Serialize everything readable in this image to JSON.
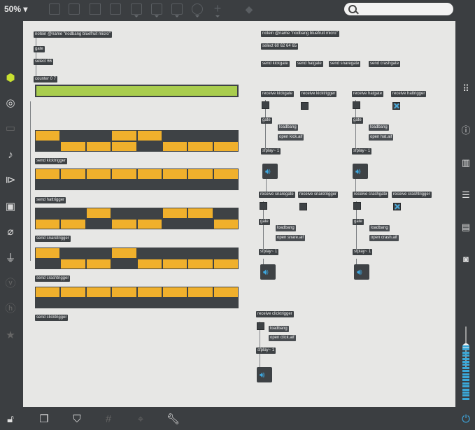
{
  "toolbar": {
    "zoom": "50%",
    "icons": [
      "patcher-icon",
      "presentation-icon",
      "comment-icon",
      "toggle-icon",
      "target-icon",
      "play-icon",
      "minus-icon",
      "dial-icon",
      "plus-icon",
      "paint-bucket-icon"
    ]
  },
  "search": {
    "placeholder": ""
  },
  "left_sidebar": [
    "cube-icon",
    "target-circle-icon",
    "package-icon",
    "music-note-icon",
    "sequence-icon",
    "image-icon",
    "paperclip-icon",
    "plug-icon",
    "v-icon",
    "h-icon",
    "star-icon"
  ],
  "right_sidebar": [
    "grid-dots-icon",
    "info-icon",
    "book-icon",
    "list-icon",
    "reference-icon",
    "camera-icon"
  ],
  "bottom_bar": [
    "lock-icon",
    "windows-icon",
    "presentation-icon",
    "grid-icon",
    "pin-icon",
    "wrench-icon"
  ],
  "colors": {
    "accent": "#a9cd4e",
    "step_on": "#f0b02c",
    "step_off": "#3e4245",
    "blue": "#3ea8e0",
    "canvas": "#e7e7e5"
  },
  "patch": {
    "notein_left": "notein @name \"nodbang bluefruit micro\"",
    "gate_left": "gate",
    "select_left": "select 66",
    "counter": "counter 0 7",
    "send_kicktrigger": "send kicktrigger",
    "send_hattrigger": "send hattrigger",
    "send_snaretrigger": "send snaretrigger",
    "send_crashtrigger": "send crashtrigger",
    "send_clicktrigger": "send clicktrigger",
    "notein_right": "notein @name \"nodbang bluefruit micro\"",
    "select_right": "select 60 62 64 65",
    "send_kickgate": "send kickgate",
    "send_hatgate": "send hatgate",
    "send_snaregate": "send snaregate",
    "send_crashgate": "send crashgate",
    "kick": {
      "recv_gate": "receive kickgate",
      "recv_trig": "receive kicktrigger",
      "gate": "gate",
      "loadbang": "loadbang",
      "open": "open kick.aif",
      "sfplay": "sfplay~ 1"
    },
    "hat": {
      "recv_gate": "receive hatgate",
      "recv_trig": "receive hattrigger",
      "gate": "gate",
      "loadbang": "loadbang",
      "open": "open hat.aif",
      "sfplay": "sfplay~ 1"
    },
    "snare": {
      "recv_gate": "receive snaregate",
      "recv_trig": "receive snaretrigger",
      "gate": "gate",
      "loadbang": "loadbang",
      "open": "open snare.aif",
      "sfplay": "sfplay~ 1"
    },
    "crash": {
      "recv_gate": "receive crashgate",
      "recv_trig": "receive crashtrigger",
      "gate": "gate",
      "loadbang": "loadbang",
      "open": "open crash.aif",
      "sfplay": "sfplay~ 1"
    },
    "click": {
      "recv_trig": "receive clicktrigger",
      "loadbang": "loadbang",
      "open": "open click.aif",
      "sfplay": "sfplay~ 1"
    }
  },
  "steps": {
    "kick": [
      [
        1,
        0,
        0,
        1,
        1,
        0,
        0,
        0
      ],
      [
        0,
        1,
        1,
        1,
        0,
        1,
        1,
        1
      ]
    ],
    "hat": [
      [
        1,
        1,
        1,
        1,
        1,
        1,
        1,
        1
      ],
      [
        0,
        0,
        0,
        0,
        0,
        0,
        0,
        0
      ]
    ],
    "snare": [
      [
        0,
        0,
        1,
        0,
        0,
        1,
        1,
        0
      ],
      [
        1,
        1,
        0,
        1,
        1,
        0,
        0,
        1
      ]
    ],
    "crash": [
      [
        1,
        0,
        0,
        1,
        0,
        0,
        0,
        0
      ],
      [
        0,
        1,
        1,
        0,
        1,
        1,
        1,
        1
      ]
    ],
    "click": [
      [
        1,
        1,
        1,
        1,
        1,
        1,
        1,
        1
      ],
      [
        0,
        0,
        0,
        0,
        0,
        0,
        0,
        0
      ]
    ]
  }
}
